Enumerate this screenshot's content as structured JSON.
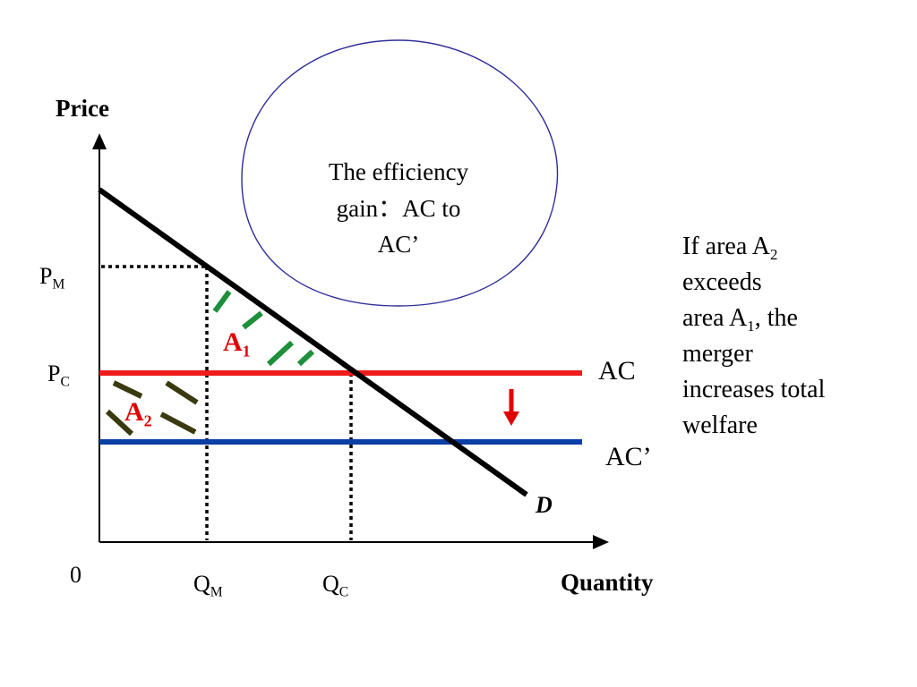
{
  "axes": {
    "y_title": "Price",
    "x_title": "Quantity",
    "origin": "0"
  },
  "ticks": {
    "pm_base": "P",
    "pm_sub": "M",
    "pc_base": "P",
    "pc_sub": "C",
    "qm_base": "Q",
    "qm_sub": "M",
    "qc_base": "Q",
    "qc_sub": "C"
  },
  "curves": {
    "ac_label": "AC",
    "ac_prime_label": "AC’",
    "demand_label": "D"
  },
  "areas": {
    "a1_base": "A",
    "a1_sub": "1",
    "a2_base": "A",
    "a2_sub": "2"
  },
  "bubble": {
    "line1": "The efficiency",
    "line2": "gain：AC to",
    "line3": "AC’"
  },
  "note": {
    "line1_a": "If area A",
    "line1_sub": "2",
    "line2": "exceeds",
    "line3_a": "area A",
    "line3_sub": "1",
    "line3_b": ", the",
    "line4": "merger",
    "line5": "increases total",
    "line6": "welfare"
  },
  "colors": {
    "ac": "#ee1c1c",
    "ac_prime": "#0b3fa6",
    "demand": "#000000",
    "a1_hatch": "#1e8f3a",
    "a2_hatch": "#3a3a10",
    "arrow": "#e00000",
    "bubble_stroke": "#2e2e9a"
  }
}
